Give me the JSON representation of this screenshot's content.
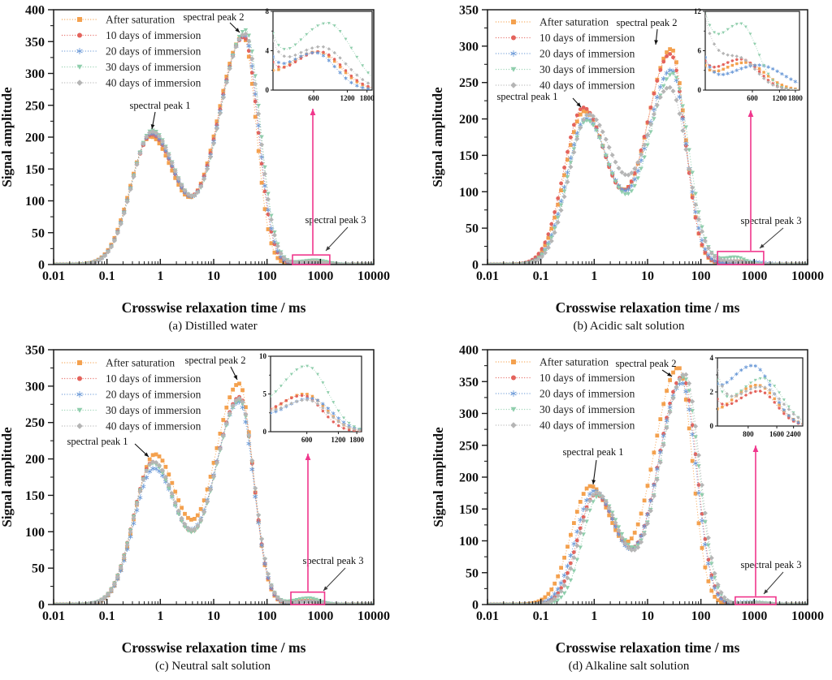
{
  "figure": {
    "xlabel": "Crosswise relaxation time / ms",
    "ylabel": "Signal amplitude",
    "legend": [
      {
        "label": "After saturation",
        "color": "#F4A14E",
        "marker": "square"
      },
      {
        "label": "10 days of immersion",
        "color": "#E4635C",
        "marker": "circle"
      },
      {
        "label": "20 days of immersion",
        "color": "#6D9BD8",
        "marker": "star"
      },
      {
        "label": "30 days of immersion",
        "color": "#8FCEAC",
        "marker": "triangle-down"
      },
      {
        "label": "40 days of immersion",
        "color": "#B5B5B5",
        "marker": "diamond"
      }
    ],
    "annotations": {
      "peak1": "spectral peak 1",
      "peak2": "spectral peak 2",
      "peak3": "spectral peak 3"
    },
    "pink": "#F0368C",
    "axis_color": "#1a1a1a"
  },
  "chart_data": [
    {
      "type": "line",
      "caption": "(a) Distilled water",
      "ylim": [
        0,
        400
      ],
      "ytick_step": 50,
      "xlim": [
        0.01,
        10000
      ],
      "xtick_labels": [
        "0.01",
        "0.1",
        "1",
        "10",
        "100",
        "1000",
        "10000"
      ],
      "series": [
        {
          "name": "After saturation",
          "peaks": [
            [
              0.65,
              200,
              0.38,
              0.47
            ],
            [
              36,
              358,
              0.5,
              0.24
            ],
            [
              650,
              3.9,
              0.28,
              0.2
            ]
          ]
        },
        {
          "name": "10 days of immersion",
          "peaks": [
            [
              0.68,
              203,
              0.38,
              0.47
            ],
            [
              37,
              357,
              0.5,
              0.26
            ],
            [
              680,
              3.9,
              0.26,
              0.2
            ]
          ]
        },
        {
          "name": "20 days of immersion",
          "peaks": [
            [
              0.68,
              205,
              0.38,
              0.47
            ],
            [
              38,
              360,
              0.5,
              0.26
            ],
            [
              620,
              3.8,
              0.26,
              0.18
            ]
          ]
        },
        {
          "name": "30 days of immersion",
          "peaks": [
            [
              0.7,
              210,
              0.38,
              0.47
            ],
            [
              40,
              368,
              0.5,
              0.27
            ],
            [
              800,
              6.8,
              0.3,
              0.22
            ]
          ]
        },
        {
          "name": "40 days of immersion",
          "peaks": [
            [
              0.7,
              208,
              0.38,
              0.47
            ],
            [
              39,
              362,
              0.5,
              0.27
            ],
            [
              700,
              4.4,
              0.3,
              0.22
            ]
          ]
        }
      ],
      "inset": {
        "ylim": [
          0,
          8
        ],
        "yticks": [
          0,
          4,
          8
        ],
        "xticks": [
          600,
          1200,
          1800
        ],
        "xrange": [
          260,
          2000
        ]
      },
      "peak3_box": {
        "x1_ms": 300,
        "x2_ms": 1500,
        "amp": 15
      }
    },
    {
      "type": "line",
      "caption": "(b) Acidic salt solution",
      "ylim": [
        0,
        350
      ],
      "ytick_step": 50,
      "xlim": [
        0.01,
        10000
      ],
      "xtick_labels": [
        "0.01",
        "0.1",
        "1",
        "10",
        "100",
        "1000",
        "10000"
      ],
      "series": [
        {
          "name": "After saturation",
          "peaks": [
            [
              0.65,
              210,
              0.36,
              0.45
            ],
            [
              28,
              296,
              0.47,
              0.26
            ],
            [
              500,
              4.2,
              0.3,
              0.22
            ]
          ]
        },
        {
          "name": "10 days of immersion",
          "peaks": [
            [
              0.62,
              215,
              0.36,
              0.45
            ],
            [
              27,
              289,
              0.47,
              0.27
            ],
            [
              450,
              4.7,
              0.28,
              0.2
            ]
          ]
        },
        {
          "name": "20 days of immersion",
          "peaks": [
            [
              0.7,
              200,
              0.36,
              0.45
            ],
            [
              28,
              267,
              0.47,
              0.28
            ],
            [
              700,
              3.8,
              0.34,
              0.28
            ]
          ]
        },
        {
          "name": "30 days of immersion",
          "peaks": [
            [
              0.72,
              197,
              0.36,
              0.45
            ],
            [
              30,
              262,
              0.47,
              0.3
            ],
            [
              450,
              10.0,
              0.26,
              0.18
            ]
          ]
        },
        {
          "name": "40 days of immersion",
          "peaks": [
            [
              0.78,
              205,
              0.36,
              0.48
            ],
            [
              26,
              242,
              0.47,
              0.33
            ],
            [
              420,
              4.8,
              0.26,
              0.2
            ]
          ]
        }
      ],
      "inset": {
        "ylim": [
          0,
          12
        ],
        "yticks": [
          0,
          6,
          12
        ],
        "xticks": [
          600,
          1200,
          1800
        ],
        "xrange": [
          180,
          2000
        ]
      },
      "peak3_box": {
        "x1_ms": 205,
        "x2_ms": 1500,
        "amp": 18
      }
    },
    {
      "type": "line",
      "caption": "(c) Neutral salt solution",
      "ylim": [
        0,
        350
      ],
      "ytick_step": 50,
      "xlim": [
        0.01,
        10000
      ],
      "xtick_labels": [
        "0.01",
        "0.1",
        "1",
        "10",
        "100",
        "1000",
        "10000"
      ],
      "series": [
        {
          "name": "After saturation",
          "peaks": [
            [
              0.78,
              205,
              0.37,
              0.45
            ],
            [
              30,
              303,
              0.48,
              0.26
            ],
            [
              575,
              5.0,
              0.28,
              0.2
            ]
          ]
        },
        {
          "name": "10 days of immersion",
          "peaks": [
            [
              0.72,
              195,
              0.37,
              0.45
            ],
            [
              31,
              285,
              0.48,
              0.26
            ],
            [
              550,
              4.8,
              0.28,
              0.18
            ]
          ]
        },
        {
          "name": "20 days of immersion",
          "peaks": [
            [
              0.75,
              186,
              0.37,
              0.45
            ],
            [
              30,
              278,
              0.48,
              0.27
            ],
            [
              650,
              4.4,
              0.3,
              0.2
            ]
          ]
        },
        {
          "name": "30 days of immersion",
          "peaks": [
            [
              0.72,
              193,
              0.37,
              0.45
            ],
            [
              31,
              280,
              0.48,
              0.27
            ],
            [
              600,
              8.7,
              0.28,
              0.2
            ]
          ]
        },
        {
          "name": "40 days of immersion",
          "peaks": [
            [
              0.74,
              195,
              0.37,
              0.45
            ],
            [
              31,
              283,
              0.48,
              0.27
            ],
            [
              600,
              4.2,
              0.3,
              0.2
            ]
          ]
        }
      ],
      "inset": {
        "ylim": [
          0,
          10
        ],
        "yticks": [
          0,
          5,
          10
        ],
        "xticks": [
          600,
          1200,
          1800
        ],
        "xrange": [
          270,
          2000
        ]
      },
      "peak3_box": {
        "x1_ms": 280,
        "x2_ms": 1200,
        "amp": 17
      }
    },
    {
      "type": "line",
      "caption": "(d) Alkaline salt solution",
      "ylim": [
        0,
        400
      ],
      "ytick_step": 50,
      "xlim": [
        0.01,
        10000
      ],
      "xtick_labels": [
        "0.01",
        "0.1",
        "1",
        "10",
        "100",
        "1000",
        "10000"
      ],
      "series": [
        {
          "name": "After saturation",
          "peaks": [
            [
              0.85,
              185,
              0.36,
              0.42
            ],
            [
              38,
              372,
              0.48,
              0.26
            ],
            [
              1000,
              2.4,
              0.28,
              0.2
            ]
          ]
        },
        {
          "name": "10 days of immersion",
          "peaks": [
            [
              1.05,
              172,
              0.33,
              0.42
            ],
            [
              45,
              358,
              0.46,
              0.27
            ],
            [
              1050,
              2.05,
              0.28,
              0.18
            ]
          ]
        },
        {
          "name": "20 days of immersion",
          "peaks": [
            [
              1.0,
              178,
              0.34,
              0.42
            ],
            [
              44,
              348,
              0.46,
              0.27
            ],
            [
              900,
              3.55,
              0.3,
              0.2
            ]
          ]
        },
        {
          "name": "30 days of immersion",
          "peaks": [
            [
              1.2,
              170,
              0.3,
              0.42
            ],
            [
              48,
              357,
              0.45,
              0.28
            ],
            [
              1150,
              2.8,
              0.28,
              0.2
            ]
          ]
        },
        {
          "name": "40 days of immersion",
          "peaks": [
            [
              1.1,
              175,
              0.32,
              0.42
            ],
            [
              50,
              362,
              0.46,
              0.28
            ],
            [
              1100,
              2.3,
              0.3,
              0.22
            ]
          ]
        }
      ],
      "inset": {
        "ylim": [
          0,
          4
        ],
        "yticks": [
          0,
          2,
          4
        ],
        "xticks": [
          800,
          1600,
          2400
        ],
        "xrange": [
          380,
          3000
        ]
      },
      "peak3_box": {
        "x1_ms": 440,
        "x2_ms": 2550,
        "amp": 12
      }
    }
  ]
}
